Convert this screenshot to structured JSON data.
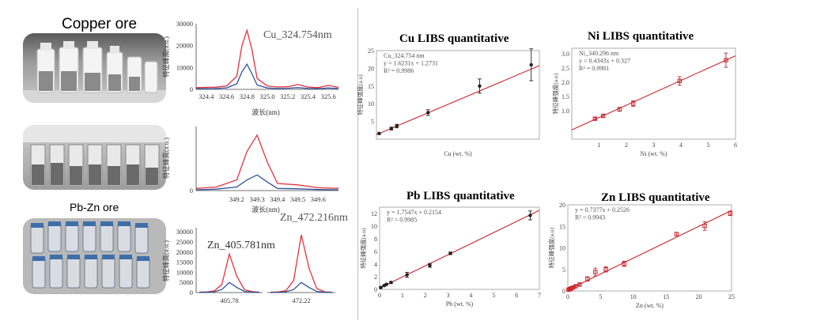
{
  "photos": {
    "copper_label": "Copper ore",
    "pbzn_label": "Pb-Zn ore"
  },
  "spectra": {
    "cu_line": "Cu_324.754nm",
    "zn_line_1": "Zn_472.216nm",
    "zn_line_2": "Zn_405.781nm",
    "ylabel": "特征峰高(a.u.)",
    "xlabel": "波长(nm)"
  },
  "chart_data": [
    {
      "type": "line",
      "id": "spec_cu",
      "x": [
        324.3,
        324.4,
        324.5,
        324.6,
        324.7,
        324.75,
        324.8,
        324.85,
        324.9,
        325.0,
        325.1,
        325.2,
        325.3,
        325.4,
        325.5,
        325.6,
        325.7
      ],
      "series": [
        {
          "name": "",
          "color": "#e0333c",
          "values": [
            800,
            900,
            1000,
            1600,
            6000,
            20000,
            27000,
            18000,
            5000,
            1500,
            1100,
            1200,
            2200,
            1000,
            800,
            1800,
            900
          ]
        },
        {
          "name": "",
          "color": "#2d4f9c",
          "values": [
            300,
            350,
            400,
            700,
            2500,
            8000,
            11500,
            7000,
            2000,
            600,
            400,
            500,
            800,
            400,
            300,
            600,
            350
          ]
        }
      ],
      "xticks": [
        "324.4",
        "324.6",
        "324.8",
        "325.0",
        "325.2",
        "325.4",
        "325.6"
      ],
      "yticks": [
        "0",
        "10000",
        "20000",
        "30000"
      ],
      "ylim": [
        0,
        30000
      ]
    },
    {
      "type": "line",
      "id": "spec_zn472",
      "x": [
        349.0,
        349.1,
        349.2,
        349.25,
        349.3,
        349.35,
        349.4,
        349.5,
        349.6,
        349.7
      ],
      "series": [
        {
          "name": "",
          "color": "#e0333c",
          "values": [
            0.3,
            0.5,
            1.5,
            5.5,
            7.8,
            4.0,
            1.0,
            0.8,
            0.4,
            0.3
          ]
        },
        {
          "name": "",
          "color": "#2d4f9c",
          "values": [
            0.1,
            0.2,
            0.5,
            1.5,
            2.2,
            1.2,
            0.3,
            0.25,
            0.15,
            0.1
          ]
        }
      ],
      "xticks": [
        "349.2",
        "349.3",
        "349.4",
        "349.5",
        "349.6"
      ],
      "yticks": [
        "0"
      ],
      "ylim": [
        0,
        9
      ]
    },
    {
      "type": "line",
      "id": "spec_zn405",
      "series_groups": [
        {
          "x_tick": "405.78",
          "red": [
            200,
            300,
            800,
            4000,
            19000,
            8000,
            1500,
            500,
            200
          ],
          "blue": [
            100,
            150,
            400,
            1500,
            5000,
            2500,
            600,
            200,
            100
          ]
        },
        {
          "x_tick": "472.22",
          "red": [
            200,
            300,
            900,
            6000,
            28500,
            12000,
            2000,
            400,
            200
          ],
          "blue": [
            100,
            150,
            400,
            1500,
            5000,
            2500,
            600,
            200,
            100
          ]
        }
      ],
      "yticks": [
        "0",
        "5000",
        "10000",
        "15000",
        "20000",
        "25000",
        "30000"
      ],
      "ylim": [
        0,
        32000
      ]
    },
    {
      "type": "scatter",
      "id": "cu_quant",
      "title": "Cu LIBS quantitative",
      "xlabel": "Cu (wt. %)",
      "ylabel": "特征峰强度(a.u)",
      "annotation": [
        "Cu_324.754 nm",
        "y = 1.6231x + 1.2731",
        "R² = 0.9986"
      ],
      "x": [
        0.2,
        1.1,
        1.5,
        3.8,
        7.6,
        11.4
      ],
      "y": [
        1.6,
        3.0,
        3.7,
        7.5,
        15.0,
        21.0
      ],
      "err": [
        0.2,
        0.4,
        0.5,
        0.8,
        2.0,
        4.5
      ],
      "fit": {
        "slope": 1.6231,
        "intercept": 1.2731
      },
      "xlim": [
        0,
        12
      ],
      "ylim": [
        0,
        25
      ],
      "yticks": [
        "5",
        "10",
        "15",
        "20",
        "25"
      ]
    },
    {
      "type": "scatter",
      "id": "ni_quant",
      "title": "Ni LIBS quantitative",
      "xlabel": "Ni (wt. %)",
      "ylabel": "特征峰强度(a.u)",
      "annotation": [
        "Ni_349.296 nm",
        "y = 0.4343x + 0.327",
        "R² = 0.9981"
      ],
      "x": [
        0.85,
        1.15,
        1.75,
        2.25,
        3.95,
        5.65
      ],
      "y": [
        0.72,
        0.82,
        1.05,
        1.25,
        2.05,
        2.78
      ],
      "err": [
        0.04,
        0.05,
        0.07,
        0.1,
        0.15,
        0.25
      ],
      "fit": {
        "slope": 0.4343,
        "intercept": 0.327
      },
      "xlim": [
        0,
        6
      ],
      "ylim": [
        0,
        3.2
      ],
      "xticks": [
        "1",
        "2",
        "3",
        "4",
        "5",
        "6"
      ],
      "yticks": [
        "1.0",
        "1.5",
        "2.0",
        "2.5",
        "3.0"
      ]
    },
    {
      "type": "scatter",
      "id": "pb_quant",
      "title": "Pb LIBS quantitative",
      "xlabel": "Pb (wt. %)",
      "ylabel": "特征峰强度(a.u)",
      "annotation": [
        "y = 1.7547x + 0.2154",
        "R² = 0.9985"
      ],
      "x": [
        0.05,
        0.2,
        0.3,
        0.5,
        1.2,
        2.2,
        3.1,
        6.6
      ],
      "y": [
        0.3,
        0.6,
        0.8,
        1.1,
        2.3,
        3.8,
        5.7,
        11.7
      ],
      "err": [
        0.1,
        0.1,
        0.1,
        0.15,
        0.4,
        0.3,
        0.2,
        0.7
      ],
      "fit": {
        "slope": 1.7547,
        "intercept": 0.2154
      },
      "xlim": [
        0,
        7
      ],
      "ylim": [
        0,
        13
      ],
      "xticks": [
        "0",
        "1",
        "2",
        "3",
        "4",
        "5",
        "6",
        "7"
      ],
      "yticks": [
        "0",
        "2",
        "4",
        "6",
        "8",
        "10",
        "12"
      ]
    },
    {
      "type": "scatter",
      "id": "zn_quant",
      "title": "Zn LIBS quantitative",
      "xlabel": "Zn (wt. %)",
      "ylabel": "特征峰强度(a.u)",
      "annotation": [
        "y = 0.7377x + 0.2526",
        "R² = 0.9943"
      ],
      "x": [
        0.1,
        0.3,
        0.5,
        0.8,
        1.2,
        1.8,
        3.0,
        4.2,
        5.8,
        8.6,
        16.6,
        20.9,
        24.8
      ],
      "y": [
        0.3,
        0.45,
        0.6,
        0.8,
        1.1,
        1.5,
        2.8,
        4.4,
        5.0,
        6.3,
        13.2,
        15.1,
        18.0
      ],
      "err": [
        0.15,
        0.15,
        0.15,
        0.2,
        0.3,
        0.3,
        0.5,
        0.9,
        0.6,
        0.6,
        0.4,
        1.0,
        0.5
      ],
      "fit": {
        "slope": 0.7377,
        "intercept": 0.2526
      },
      "xlim": [
        0,
        25
      ],
      "ylim": [
        0,
        20
      ],
      "xticks": [
        "0",
        "5",
        "10",
        "15",
        "20",
        "25"
      ],
      "yticks": [
        "0",
        "5",
        "10",
        "15",
        "20"
      ]
    }
  ]
}
